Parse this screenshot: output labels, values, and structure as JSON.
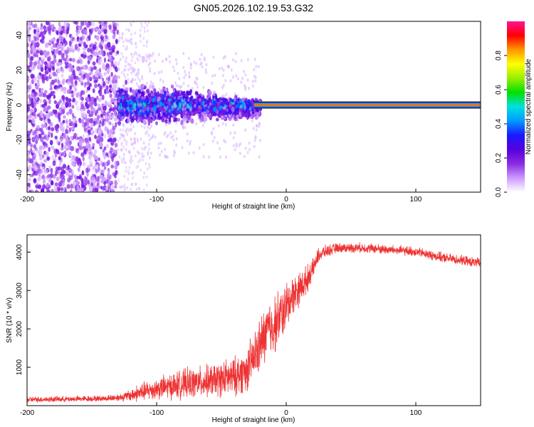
{
  "title": "GN05.2026.102.19.53.G32",
  "chart_data": [
    {
      "type": "heatmap",
      "title": "GN05.2026.102.19.53.G32",
      "xlabel": "Height of straight line (km)",
      "ylabel": "Frequency (Hz)",
      "xlim": [
        -200,
        150
      ],
      "ylim": [
        -50,
        48
      ],
      "xticks": [
        -200,
        -100,
        0,
        100
      ],
      "yticks": [
        -40,
        -20,
        0,
        20,
        40
      ],
      "colorbar": {
        "label": "Normalized spectral amplitude",
        "range": [
          0.0,
          1.0
        ],
        "ticks": [
          "0.0",
          "0.2",
          "0.4",
          "0.6",
          "0.8"
        ],
        "colors": [
          "#ffffff",
          "#cc99ff",
          "#8a2be2",
          "#5500dd",
          "#1a1aff",
          "#0099ff",
          "#00e0e0",
          "#00e000",
          "#99ee00",
          "#ffff00",
          "#ff9900",
          "#ff0000",
          "#ff1493"
        ]
      },
      "regions": [
        {
          "name": "scattered-noise",
          "x": [
            -200,
            -130
          ],
          "freq_spread": [
            -50,
            48
          ],
          "amplitude": 0.12
        },
        {
          "name": "transition-cloud",
          "x": [
            -130,
            -20
          ],
          "freq_spread": [
            -15,
            15
          ],
          "amplitude": 0.3
        },
        {
          "name": "tone-line",
          "x": [
            -25,
            150
          ],
          "frequency": 0,
          "amplitude": 1.0
        }
      ]
    },
    {
      "type": "line",
      "xlabel": "Height of straight line (km)",
      "ylabel": "SNR (10 * v/v)",
      "xlim": [
        -200,
        150
      ],
      "ylim": [
        0,
        4450
      ],
      "xticks": [
        -200,
        -100,
        0,
        100
      ],
      "yticks": [
        1000,
        2000,
        3000,
        4000
      ],
      "color": "#ee3333",
      "series": [
        {
          "name": "SNR",
          "x": [
            -200,
            -180,
            -160,
            -140,
            -125,
            -115,
            -100,
            -80,
            -60,
            -40,
            -30,
            -20,
            -15,
            -10,
            -5,
            0,
            5,
            10,
            15,
            20,
            25,
            30,
            40,
            60,
            80,
            100,
            120,
            150
          ],
          "y": [
            150,
            160,
            170,
            180,
            220,
            300,
            420,
            520,
            600,
            700,
            900,
            1500,
            1900,
            2000,
            2250,
            2500,
            2850,
            3000,
            3200,
            3500,
            3900,
            4000,
            4100,
            4100,
            4050,
            4000,
            3850,
            3700
          ],
          "noise_amplitude": [
            120,
            120,
            120,
            120,
            180,
            350,
            450,
            600,
            650,
            800,
            900,
            1100,
            1200,
            1200,
            1100,
            1000,
            800,
            700,
            600,
            400,
            300,
            250,
            200,
            200,
            200,
            200,
            200,
            200
          ]
        }
      ]
    }
  ]
}
